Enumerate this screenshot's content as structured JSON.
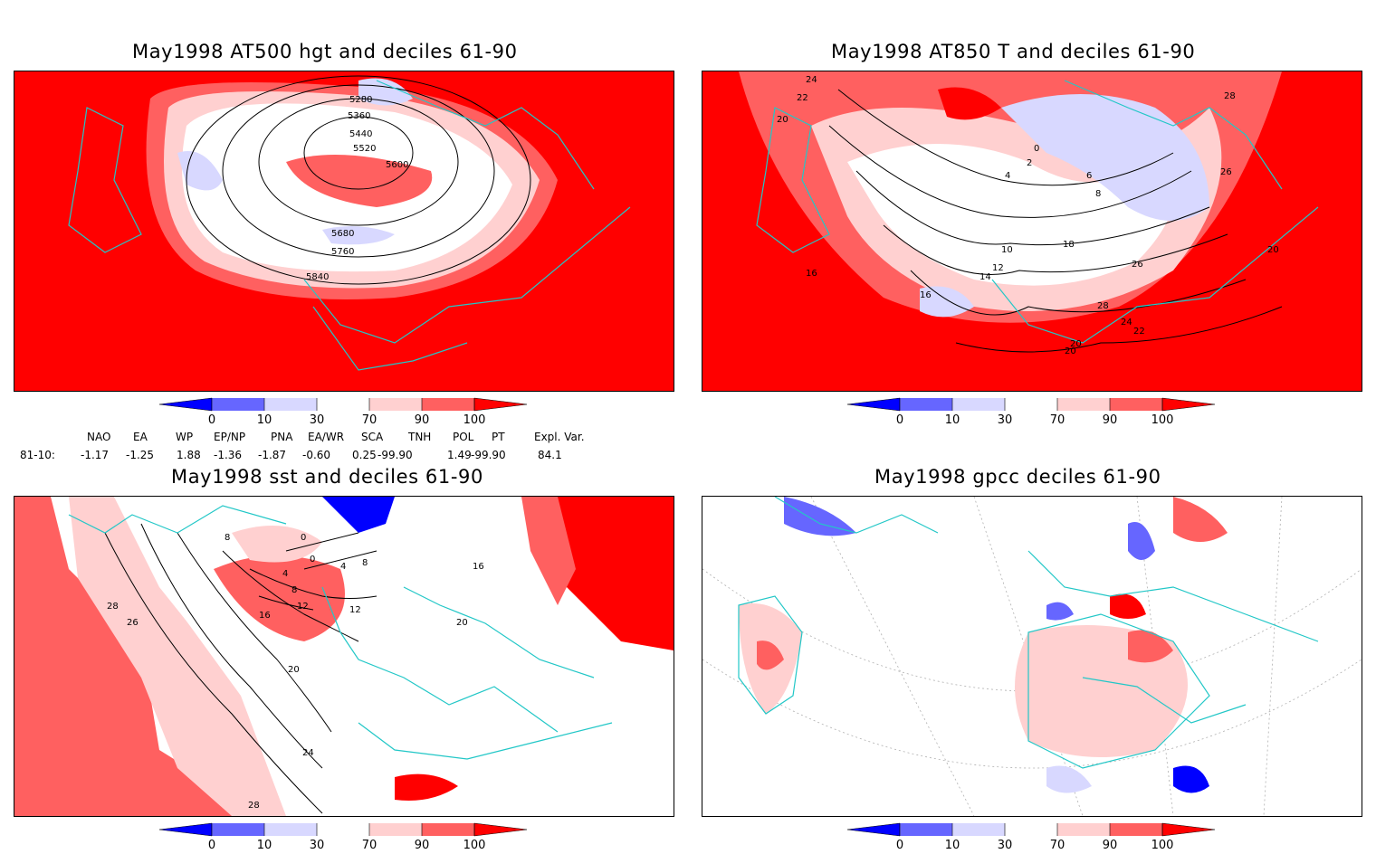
{
  "panels": [
    {
      "title": "May1998 AT500 hgt and deciles 61-90",
      "contour_labels": [
        "5280",
        "5360",
        "5440",
        "5520",
        "5600",
        "5680",
        "5760",
        "5840"
      ]
    },
    {
      "title": "May1998 AT850 T and deciles 61-90",
      "contour_labels": [
        "24",
        "22",
        "20",
        "16",
        "10",
        "12",
        "14",
        "16",
        "18",
        "20",
        "22",
        "24",
        "26",
        "28",
        "2",
        "4",
        "6",
        "8",
        "0",
        "26",
        "28",
        "20",
        "20"
      ]
    },
    {
      "title": "May1998 sst and deciles 61-90",
      "contour_labels": [
        "8",
        "0",
        "0",
        "4",
        "8",
        "12",
        "16",
        "20",
        "24",
        "28",
        "28",
        "26",
        "4",
        "8",
        "12",
        "20",
        "16"
      ]
    },
    {
      "title": "May1998 gpcc deciles 61-90",
      "contour_labels": []
    }
  ],
  "colorbar": {
    "labels": [
      "0",
      "10",
      "30",
      "70",
      "90",
      "100"
    ],
    "colors": [
      "#0000ff",
      "#6666ff",
      "#d8d8ff",
      "#ffffff",
      "#ffd0d0",
      "#ff6060",
      "#ff0000"
    ]
  },
  "indices": {
    "headers": [
      "NAO",
      "EA",
      "WP",
      "EP/NP",
      "PNA",
      "EA/WR",
      "SCA",
      "TNH",
      "POL",
      "PT",
      "Expl. Var."
    ],
    "row_label": "81-10:",
    "values": [
      "-1.17",
      "-1.25",
      "1.88",
      "-1.36",
      "-1.87",
      "-0.60",
      "0.25",
      "-99.90",
      "1.49",
      "-99.90",
      "84.1"
    ]
  }
}
